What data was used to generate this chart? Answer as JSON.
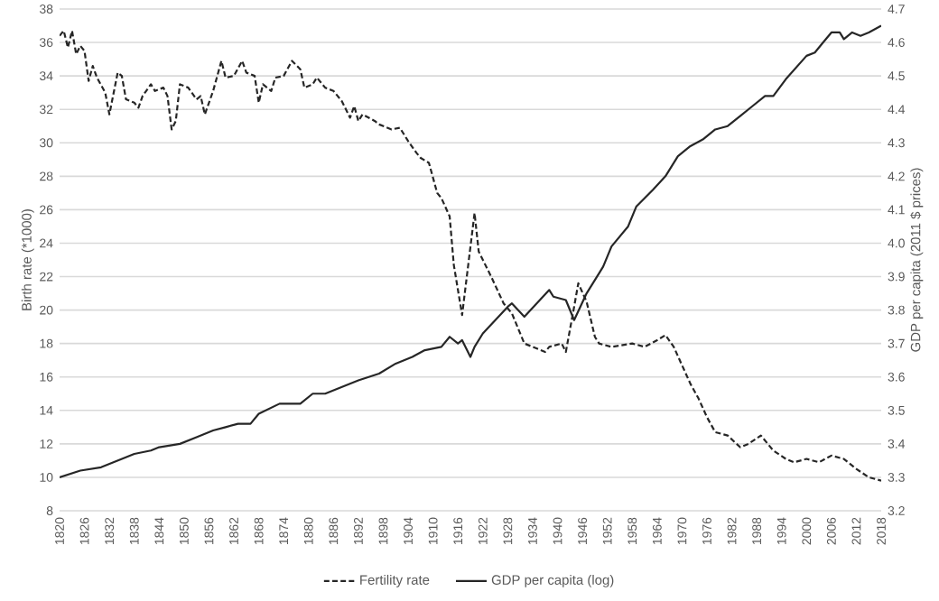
{
  "chart_data": {
    "type": "line",
    "ylabel": "Birth rate (*1000)",
    "y2label": "GDP per capita (2011 $ prices)",
    "xlim": [
      1820,
      2018
    ],
    "xticks": [
      1820,
      1826,
      1832,
      1838,
      1844,
      1850,
      1856,
      1862,
      1868,
      1874,
      1880,
      1886,
      1892,
      1898,
      1904,
      1910,
      1916,
      1922,
      1928,
      1934,
      1940,
      1946,
      1952,
      1958,
      1964,
      1970,
      1976,
      1982,
      1988,
      1994,
      2000,
      2006,
      2012,
      2018
    ],
    "ylim": [
      8,
      38
    ],
    "yticks": [
      8,
      10,
      12,
      14,
      16,
      18,
      20,
      22,
      24,
      26,
      28,
      30,
      32,
      34,
      36,
      38
    ],
    "y2lim": [
      3.2,
      4.7
    ],
    "y2ticks": [
      3.2,
      3.3,
      3.4,
      3.5,
      3.6,
      3.7,
      3.8,
      3.9,
      {
        "value": 4.0,
        "label": "4.0"
      },
      4.1,
      4.2,
      4.3,
      4.4,
      4.5,
      4.6,
      4.7
    ],
    "grid": "y",
    "legend": "bottom",
    "series": [
      {
        "name": "Fertility rate",
        "color": "#262626",
        "line_style": "dashed",
        "x": [
          1820,
          1821,
          1822,
          1823,
          1824,
          1825,
          1826,
          1827,
          1828,
          1829,
          1831,
          1832,
          1834,
          1835,
          1836,
          1838,
          1839,
          1840,
          1842,
          1843,
          1845,
          1846,
          1847,
          1848,
          1849,
          1851,
          1853,
          1854,
          1855,
          1857,
          1859,
          1860,
          1862,
          1864,
          1865,
          1867,
          1868,
          1869,
          1871,
          1872,
          1874,
          1876,
          1878,
          1879,
          1881,
          1882,
          1884,
          1886,
          1888,
          1890,
          1891,
          1892,
          1893,
          1896,
          1897,
          1900,
          1902,
          1904,
          1906,
          1907,
          1909,
          1911,
          1912,
          1914,
          1915,
          1917,
          1920,
          1921,
          1924,
          1927,
          1929,
          1932,
          1934,
          1937,
          1938,
          1941,
          1942,
          1944,
          1945,
          1947,
          1949,
          1950,
          1953,
          1958,
          1961,
          1964,
          1966,
          1968,
          1972,
          1974,
          1976,
          1978,
          1981,
          1984,
          1986,
          1989,
          1992,
          1995,
          1997,
          2000,
          2003,
          2006,
          2009,
          2012,
          2015,
          2018
        ],
        "values": [
          36.4,
          36.7,
          35.7,
          36.7,
          35.3,
          35.8,
          35.5,
          33.7,
          34.6,
          33.9,
          33.0,
          31.7,
          34.2,
          34.0,
          32.6,
          32.4,
          32.1,
          32.8,
          33.5,
          33.1,
          33.3,
          32.8,
          30.8,
          31.3,
          33.5,
          33.3,
          32.6,
          32.8,
          31.7,
          33.1,
          34.9,
          33.9,
          34.0,
          34.9,
          34.2,
          34.0,
          32.4,
          33.5,
          33.1,
          33.9,
          34.0,
          34.9,
          34.4,
          33.3,
          33.5,
          33.9,
          33.3,
          33.1,
          32.5,
          31.5,
          32.2,
          31.3,
          31.7,
          31.3,
          31.1,
          30.8,
          30.9,
          30.1,
          29.4,
          29.1,
          28.8,
          27.0,
          26.7,
          25.6,
          22.7,
          19.7,
          25.8,
          23.5,
          22.0,
          20.4,
          19.8,
          18.0,
          17.8,
          17.5,
          17.8,
          18.0,
          17.5,
          20.2,
          21.6,
          20.5,
          18.4,
          18.0,
          17.8,
          18.0,
          17.8,
          18.2,
          18.5,
          17.8,
          15.6,
          14.7,
          13.6,
          12.7,
          12.5,
          11.8,
          12.0,
          12.5,
          11.6,
          11.1,
          10.9,
          11.1,
          10.9,
          11.3,
          11.1,
          10.5,
          10.0,
          9.8
        ]
      },
      {
        "name": "GDP per capita (log)",
        "color": "#262626",
        "line_style": "solid",
        "axis": "y2",
        "x": [
          1820,
          1825,
          1830,
          1834,
          1838,
          1842,
          1844,
          1849,
          1853,
          1857,
          1860,
          1863,
          1866,
          1868,
          1873,
          1876,
          1878,
          1881,
          1884,
          1888,
          1892,
          1897,
          1901,
          1905,
          1908,
          1912,
          1914,
          1916,
          1917,
          1919,
          1920,
          1922,
          1925,
          1928,
          1929,
          1932,
          1938,
          1939,
          1942,
          1944,
          1947,
          1950,
          1951,
          1953,
          1957,
          1959,
          1963,
          1966,
          1969,
          1972,
          1975,
          1978,
          1981,
          1984,
          1987,
          1990,
          1992,
          1995,
          2000,
          2002,
          2004,
          2006,
          2008,
          2009,
          2011,
          2013,
          2015,
          2018
        ],
        "values": [
          3.3,
          3.32,
          3.33,
          3.35,
          3.37,
          3.38,
          3.39,
          3.4,
          3.42,
          3.44,
          3.45,
          3.46,
          3.46,
          3.49,
          3.52,
          3.52,
          3.52,
          3.55,
          3.55,
          3.57,
          3.59,
          3.61,
          3.64,
          3.66,
          3.68,
          3.69,
          3.72,
          3.7,
          3.71,
          3.66,
          3.69,
          3.73,
          3.77,
          3.81,
          3.82,
          3.78,
          3.86,
          3.84,
          3.83,
          3.77,
          3.85,
          3.91,
          3.93,
          3.99,
          4.05,
          4.11,
          4.16,
          4.2,
          4.26,
          4.29,
          4.31,
          4.34,
          4.35,
          4.38,
          4.41,
          4.44,
          4.44,
          4.49,
          4.56,
          4.57,
          4.6,
          4.63,
          4.63,
          4.61,
          4.63,
          4.62,
          4.63,
          4.65
        ]
      }
    ]
  }
}
